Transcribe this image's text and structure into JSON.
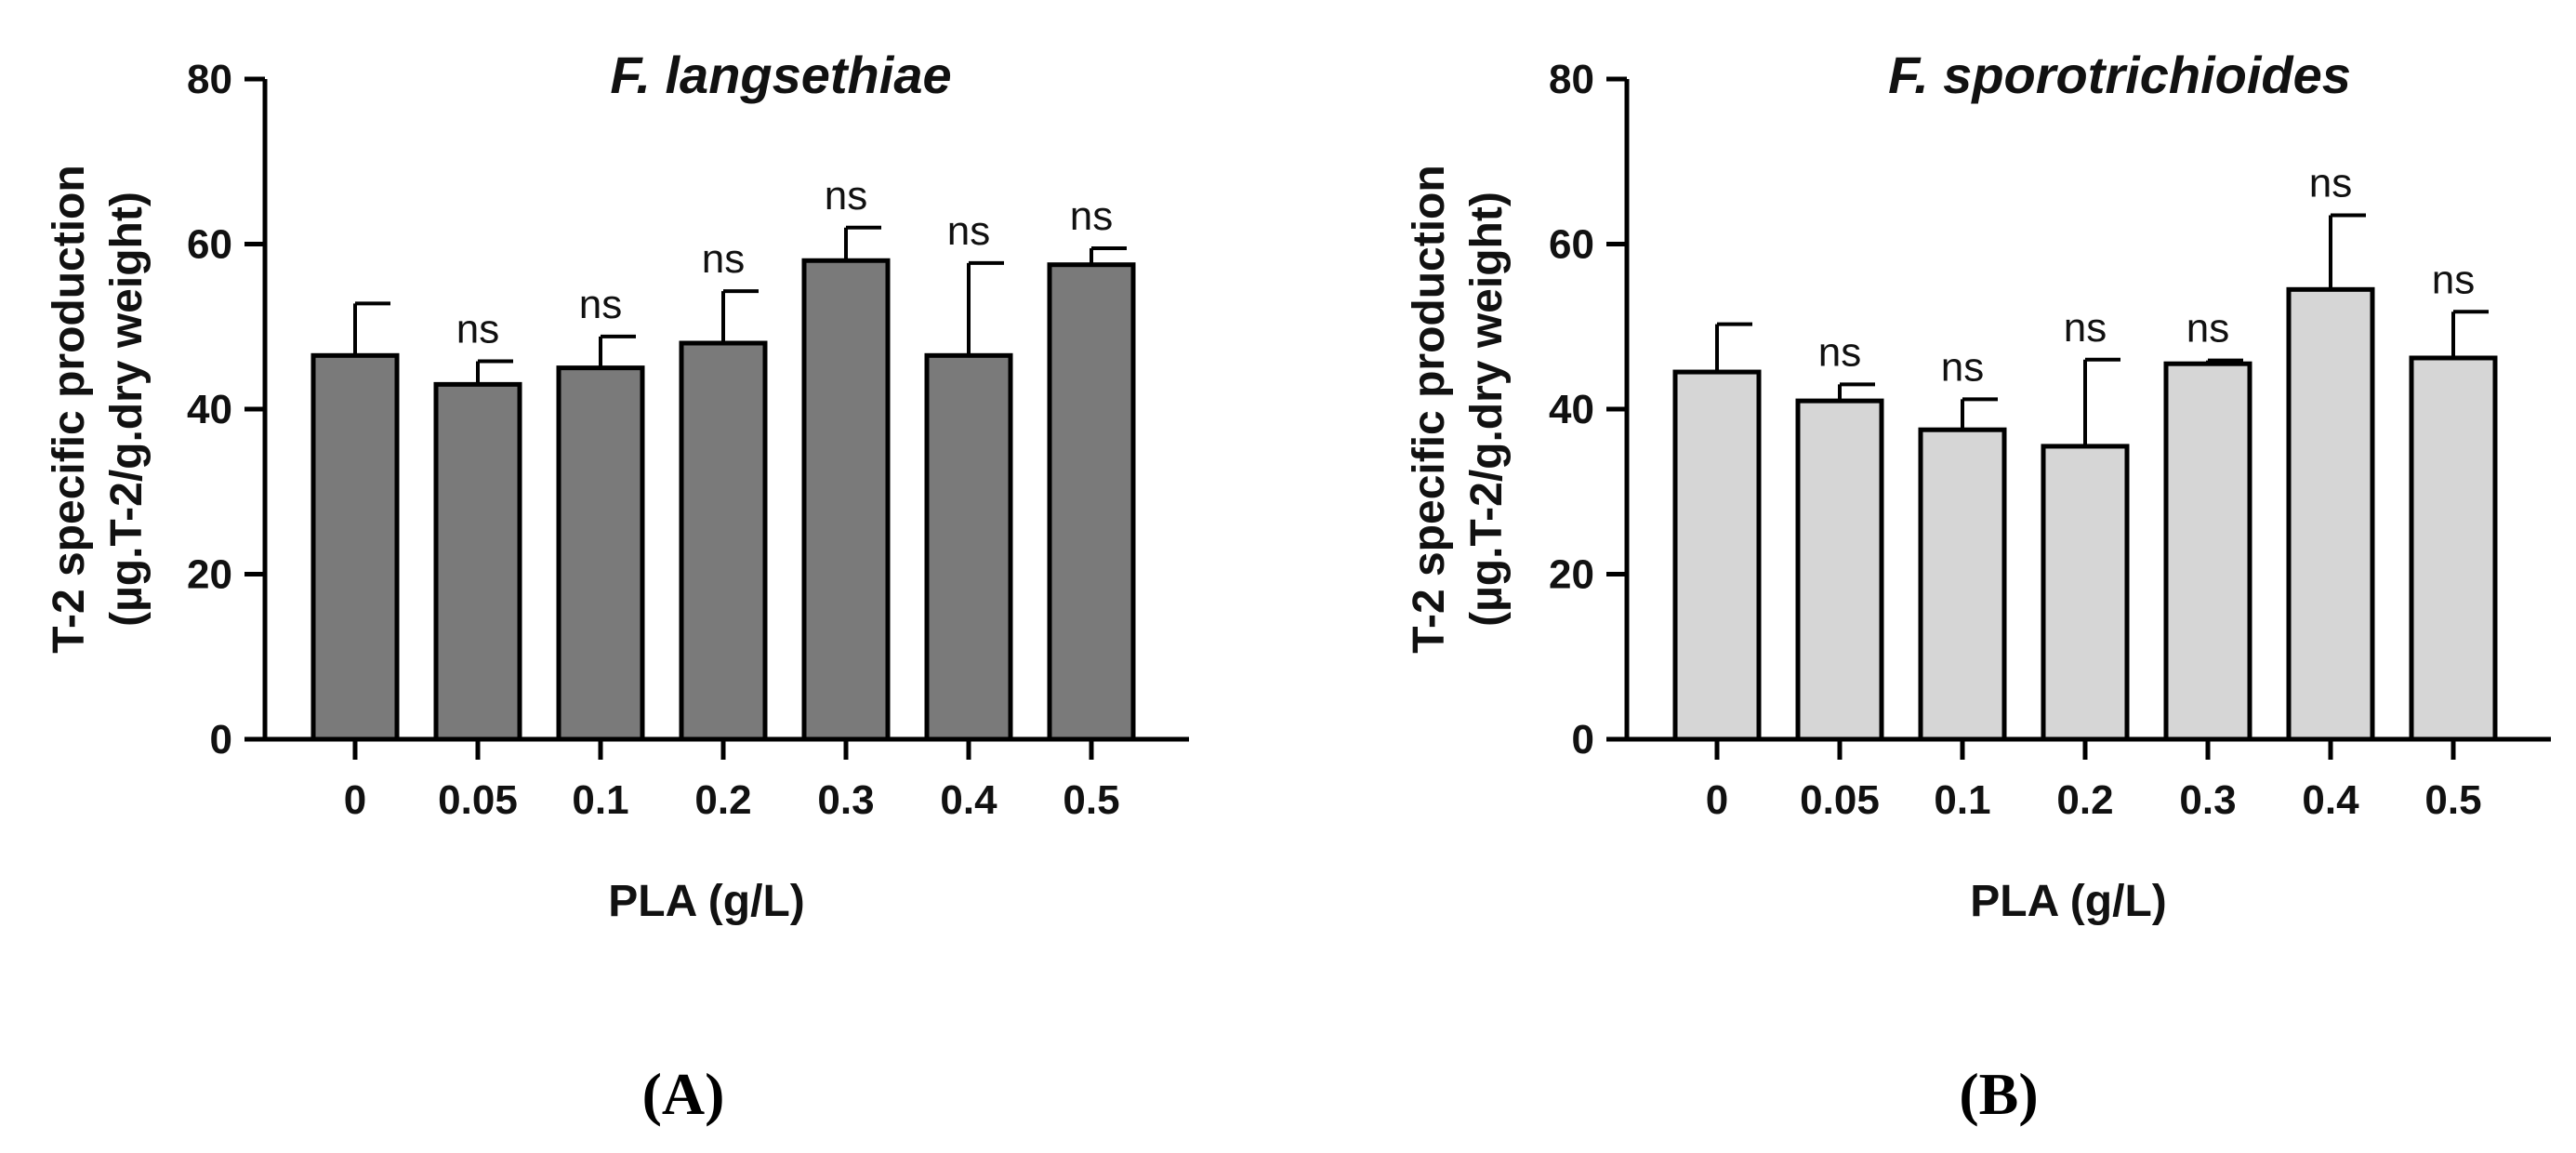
{
  "chart_data": [
    {
      "type": "bar",
      "panel_label": "(A)",
      "title": "F. langsethiae",
      "xlabel": "PLA (g/L)",
      "ylabel_line1": "T-2 specific production",
      "ylabel_line2": "(µg.T-2/g.dry weight)",
      "ylim": [
        0,
        80
      ],
      "yticks": [
        0,
        20,
        40,
        60,
        80
      ],
      "categories": [
        "0",
        "0.05",
        "0.1",
        "0.2",
        "0.3",
        "0.4",
        "0.5"
      ],
      "values": [
        46.5,
        43,
        45,
        48,
        58,
        46.5,
        57.5
      ],
      "errors": [
        6.3,
        2.8,
        3.8,
        6.3,
        4.0,
        11.2,
        2.0
      ],
      "annotations": [
        "",
        "ns",
        "ns",
        "ns",
        "ns",
        "ns",
        "ns"
      ],
      "bar_color": "#7a7a7a",
      "grid": false
    },
    {
      "type": "bar",
      "panel_label": "(B)",
      "title": "F. sporotrichioides",
      "xlabel": "PLA (g/L)",
      "ylabel_line1": "T-2 specific production",
      "ylabel_line2": "(µg.T-2/g.dry weight)",
      "ylim": [
        0,
        80
      ],
      "yticks": [
        0,
        20,
        40,
        60,
        80
      ],
      "categories": [
        "0",
        "0.05",
        "0.1",
        "0.2",
        "0.3",
        "0.4",
        "0.5"
      ],
      "values": [
        44.5,
        41,
        37.5,
        35.5,
        45.5,
        54.5,
        46.2
      ],
      "errors": [
        5.8,
        2.0,
        3.7,
        10.5,
        0.4,
        9.0,
        5.6
      ],
      "annotations": [
        "",
        "ns",
        "ns",
        "ns",
        "ns",
        "ns",
        "ns"
      ],
      "bar_color": "#d6d6d6",
      "grid": false
    }
  ]
}
